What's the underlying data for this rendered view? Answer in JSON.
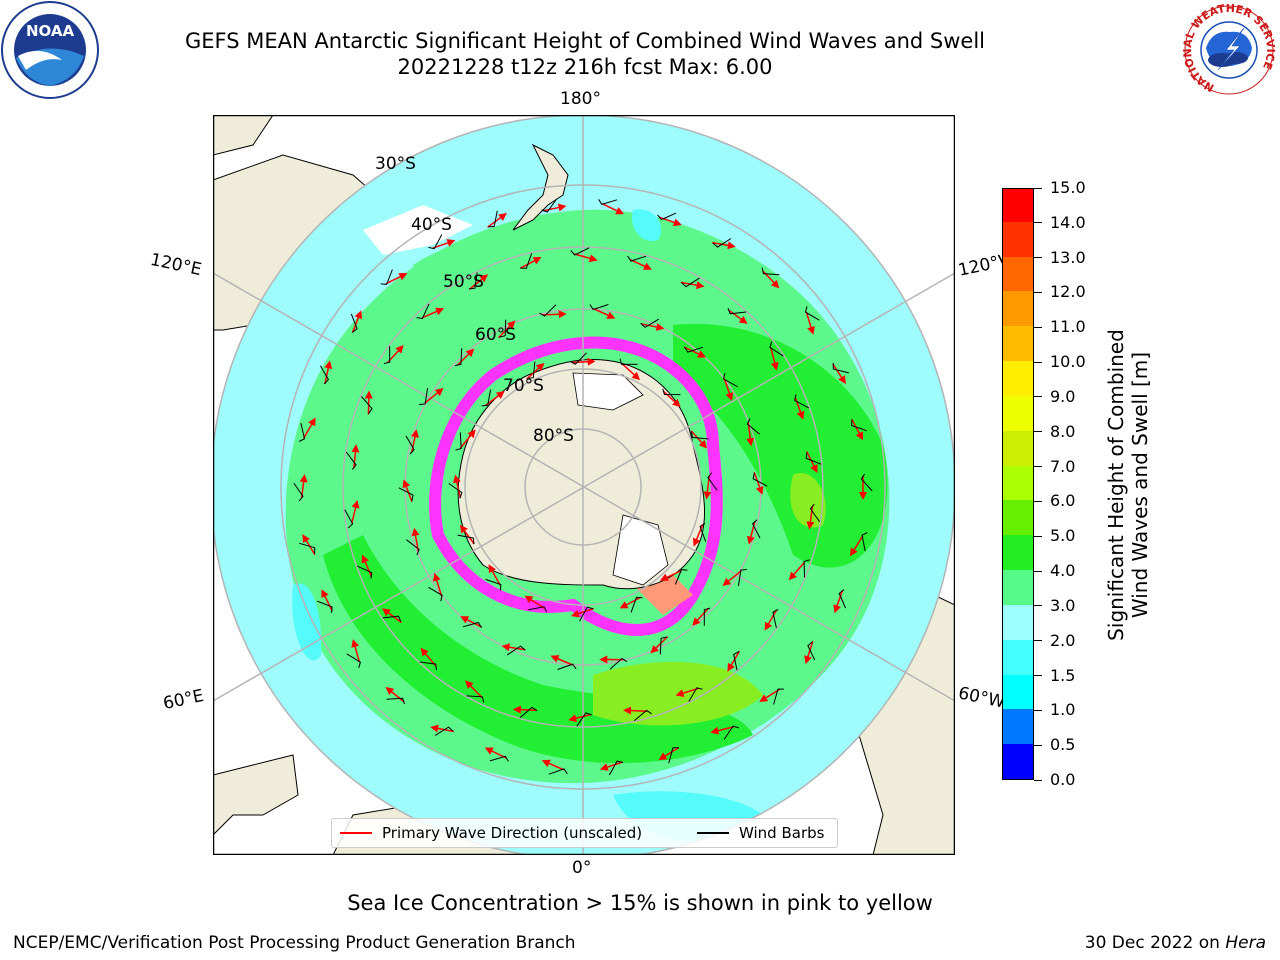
{
  "header": {
    "title_line1": "GEFS MEAN Antarctic Significant Height of Combined Wind Waves and Swell",
    "title_line2": "20221228 t12z 216h fcst   Max: 6.00"
  },
  "logos": {
    "left": "noaa-logo",
    "right": "nws-logo",
    "nws_ring_text": "NATIONAL WEATHER SERVICE"
  },
  "map": {
    "projection": "south-polar-stereographic",
    "lon_labels": {
      "top": "180°",
      "left_upper": "120°E",
      "right_upper": "120°W",
      "left_lower": "60°E",
      "right_lower": "60°W",
      "bottom": "0°"
    },
    "lat_labels": [
      "30°S",
      "40°S",
      "50°S",
      "60°S",
      "70°S",
      "80°S"
    ],
    "colors": {
      "land": "#efedda",
      "ocean_lt": "#9efcfc",
      "ocean_cy": "#55fbfb",
      "green_lt": "#5cf88c",
      "green": "#22ee33",
      "green_yel": "#88ee22",
      "ice_pink": "#ff33ff",
      "arrow": "#ff0000",
      "barb": "#000000",
      "grid": "#b4b4b4"
    }
  },
  "colorbar": {
    "tick_labels": [
      "0.0",
      "0.5",
      "1.0",
      "1.5",
      "2.0",
      "3.0",
      "4.0",
      "5.0",
      "6.0",
      "7.0",
      "8.0",
      "9.0",
      "10.0",
      "11.0",
      "12.0",
      "13.0",
      "14.0",
      "15.0"
    ],
    "colors": [
      "#0000ff",
      "#0078ff",
      "#00ffff",
      "#44ffff",
      "#9efefe",
      "#55fa88",
      "#22ee22",
      "#66f000",
      "#aaff00",
      "#ccee00",
      "#eeff00",
      "#ffee00",
      "#ffbb00",
      "#ff9900",
      "#ff6600",
      "#ff3300",
      "#ff0000"
    ],
    "title_line1": "Significant Height of Combined",
    "title_line2": "Wind Waves and Swell [m]"
  },
  "legend": {
    "item1": "Primary Wave Direction (unscaled)",
    "item2": "Wind Barbs",
    "item1_color": "#ff0000",
    "item2_color": "#000000"
  },
  "footer": {
    "note": "Sea Ice Concentration > 15% is shown in pink to yellow",
    "credit": "NCEP/EMC/Verification Post Processing Product Generation Branch",
    "date": "30 Dec 2022 on",
    "host": "Hera"
  }
}
